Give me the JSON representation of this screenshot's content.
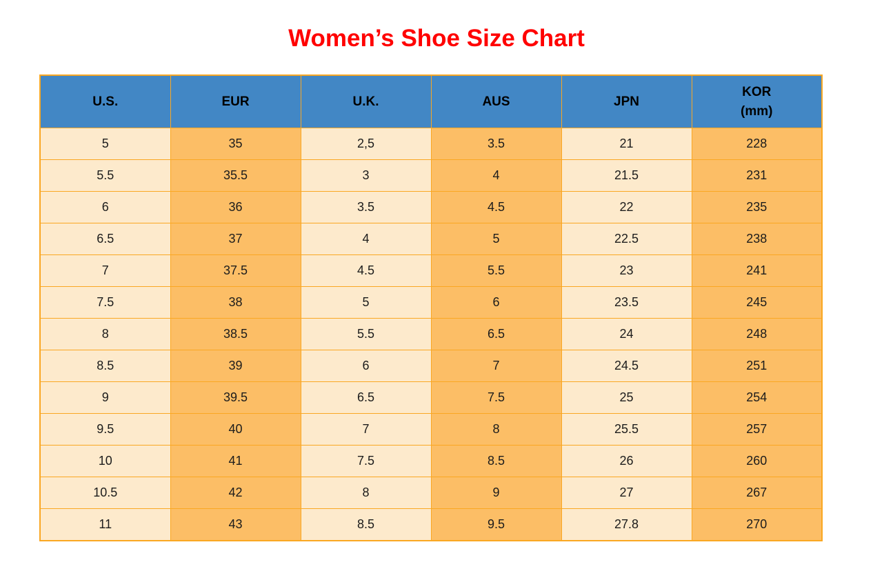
{
  "title": "Women’s Shoe Size Chart",
  "colors": {
    "title_red": "#FF0000",
    "header_blue": "#4287C5",
    "header_text": "#000000",
    "cell_cream": "#FDEACC",
    "cell_orange": "#FCBE66",
    "grid_orange": "#FAA722",
    "cell_text": "#1C1C1C"
  },
  "chart_data": {
    "type": "table",
    "title": "Women’s Shoe Size Chart",
    "columns": [
      "U.S.",
      "EUR",
      "U.K.",
      "AUS",
      "JPN",
      "KOR (mm)"
    ],
    "kor_header": {
      "line1": "KOR",
      "line2": "(mm)"
    },
    "rows": [
      [
        "5",
        "35",
        "2,5",
        "3.5",
        "21",
        "228"
      ],
      [
        "5.5",
        "35.5",
        "3",
        "4",
        "21.5",
        "231"
      ],
      [
        "6",
        "36",
        "3.5",
        "4.5",
        "22",
        "235"
      ],
      [
        "6.5",
        "37",
        "4",
        "5",
        "22.5",
        "238"
      ],
      [
        "7",
        "37.5",
        "4.5",
        "5.5",
        "23",
        "241"
      ],
      [
        "7.5",
        "38",
        "5",
        "6",
        "23.5",
        "245"
      ],
      [
        "8",
        "38.5",
        "5.5",
        "6.5",
        "24",
        "248"
      ],
      [
        "8.5",
        "39",
        "6",
        "7",
        "24.5",
        "251"
      ],
      [
        "9",
        "39.5",
        "6.5",
        "7.5",
        "25",
        "254"
      ],
      [
        "9.5",
        "40",
        "7",
        "8",
        "25.5",
        "257"
      ],
      [
        "10",
        "41",
        "7.5",
        "8.5",
        "26",
        "260"
      ],
      [
        "10.5",
        "42",
        "8",
        "9",
        "27",
        "267"
      ],
      [
        "11",
        "43",
        "8.5",
        "9.5",
        "27.8",
        "270"
      ]
    ],
    "layout": {
      "column_fill_pattern": [
        "cream",
        "orange",
        "cream",
        "orange",
        "cream",
        "orange"
      ],
      "grid": true,
      "header_position": "top"
    }
  }
}
